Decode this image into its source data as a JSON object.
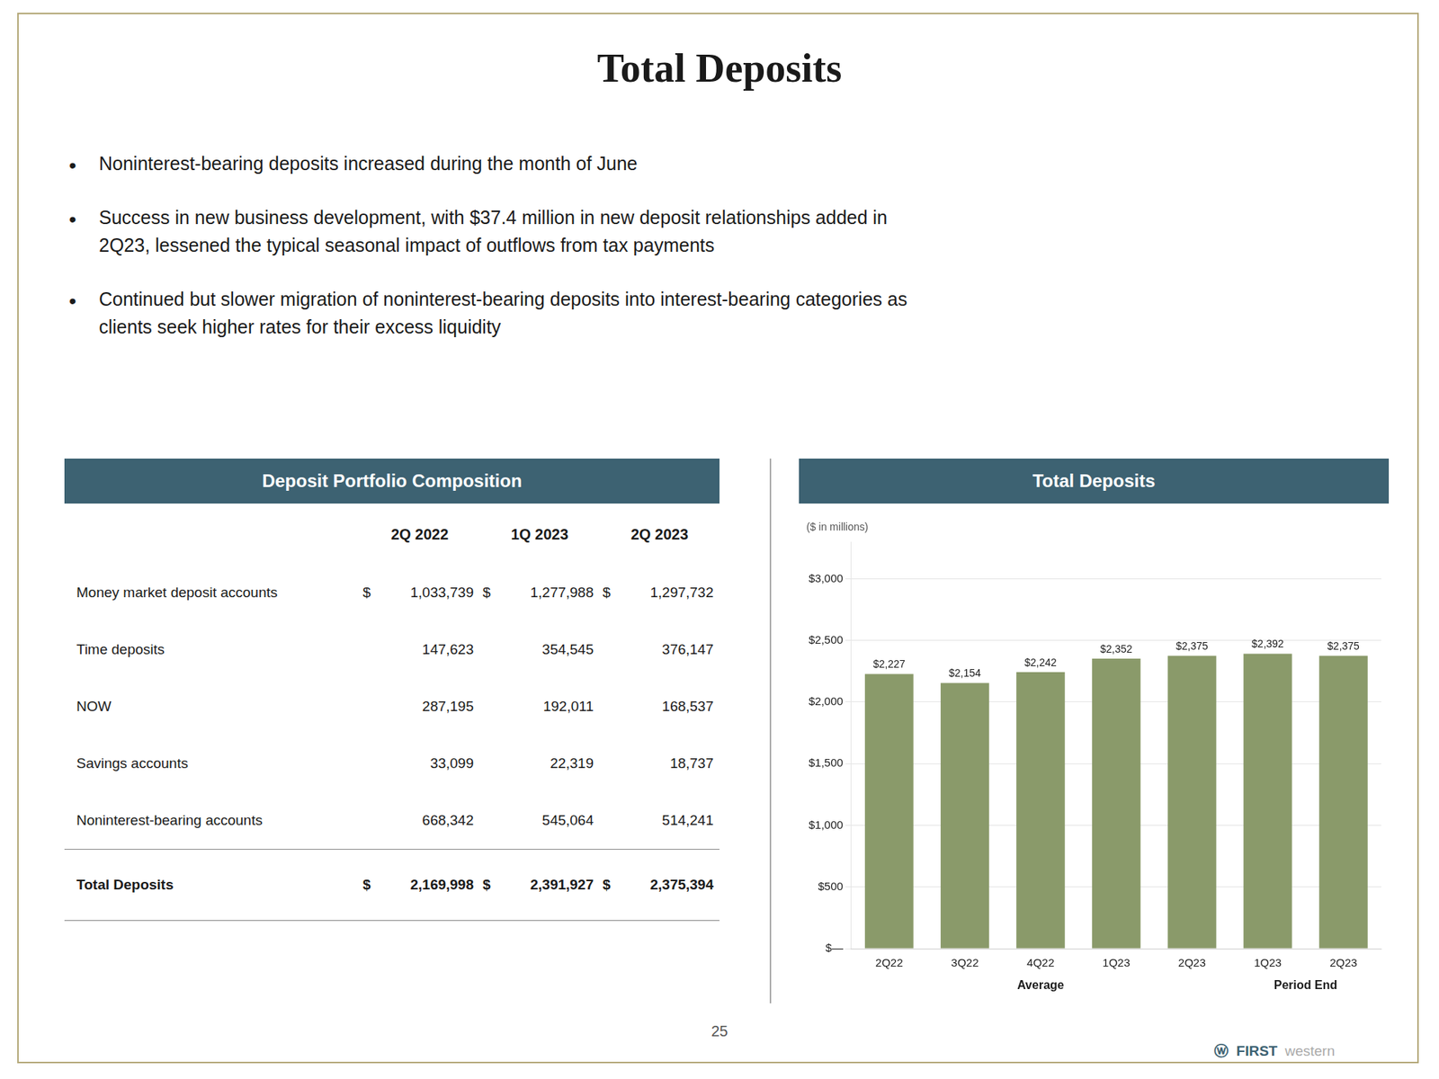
{
  "title": "Total Deposits",
  "border_color": "#b5a97a",
  "header_color": "#3d6272",
  "header_text_color": "#ffffff",
  "bullet_points": [
    "Noninterest-bearing deposits increased during the month of June",
    "Success in new business development, with $37.4 million in new deposit relationships added in\n2Q23, lessened the typical seasonal impact of outflows from tax payments",
    "Continued but slower migration of noninterest-bearing deposits into interest-bearing categories as\nclients seek higher rates for their excess liquidity"
  ],
  "table": {
    "title": "Deposit Portfolio Composition",
    "columns": [
      "2Q 2022",
      "1Q 2023",
      "2Q 2023"
    ],
    "rows": [
      [
        "Money market deposit accounts",
        "$",
        "1,033,739",
        "$",
        "1,277,988",
        "$",
        "1,297,732"
      ],
      [
        "Time deposits",
        "",
        "147,623",
        "",
        "354,545",
        "",
        "376,147"
      ],
      [
        "NOW",
        "",
        "287,195",
        "",
        "192,011",
        "",
        "168,537"
      ],
      [
        "Savings accounts",
        "",
        "33,099",
        "",
        "22,319",
        "",
        "18,737"
      ],
      [
        "Noninterest-bearing accounts",
        "",
        "668,342",
        "",
        "545,064",
        "",
        "514,241"
      ],
      [
        "Total Deposits",
        "$",
        "2,169,998",
        "$",
        "2,391,927",
        "$",
        "2,375,394"
      ]
    ]
  },
  "page_number": "25",
  "logo": [
    "ⓦ  FIRST",
    "western"
  ],
  "chart_data": {
    "type": "bar",
    "title": "Total Deposits",
    "ylabel": "($ in millions)",
    "categories": [
      "2Q22",
      "3Q22",
      "4Q22",
      "1Q23",
      "2Q23",
      "1Q23",
      "2Q23"
    ],
    "values": [
      2227,
      2154,
      2242,
      2352,
      2375,
      2392,
      2375
    ],
    "value_labels": [
      "$2,227",
      "$2,154",
      "$2,242",
      "$2,352",
      "$2,375",
      "$2,392",
      "$2,375"
    ],
    "color": "#8a9a6a",
    "annotations": [
      "Average",
      "Period End"
    ],
    "ylim": [
      0,
      3300
    ],
    "yticks": [
      {
        "value": 0,
        "label": "$—"
      },
      {
        "value": 500,
        "label": "$500"
      },
      {
        "value": 1000,
        "label": "$1,000"
      },
      {
        "value": 1500,
        "label": "$1,500"
      },
      {
        "value": 2000,
        "label": "$2,000"
      },
      {
        "value": 2500,
        "label": "$2,500"
      },
      {
        "value": 3000,
        "label": "$3,000"
      }
    ],
    "grid": true,
    "data_labels": true
  }
}
